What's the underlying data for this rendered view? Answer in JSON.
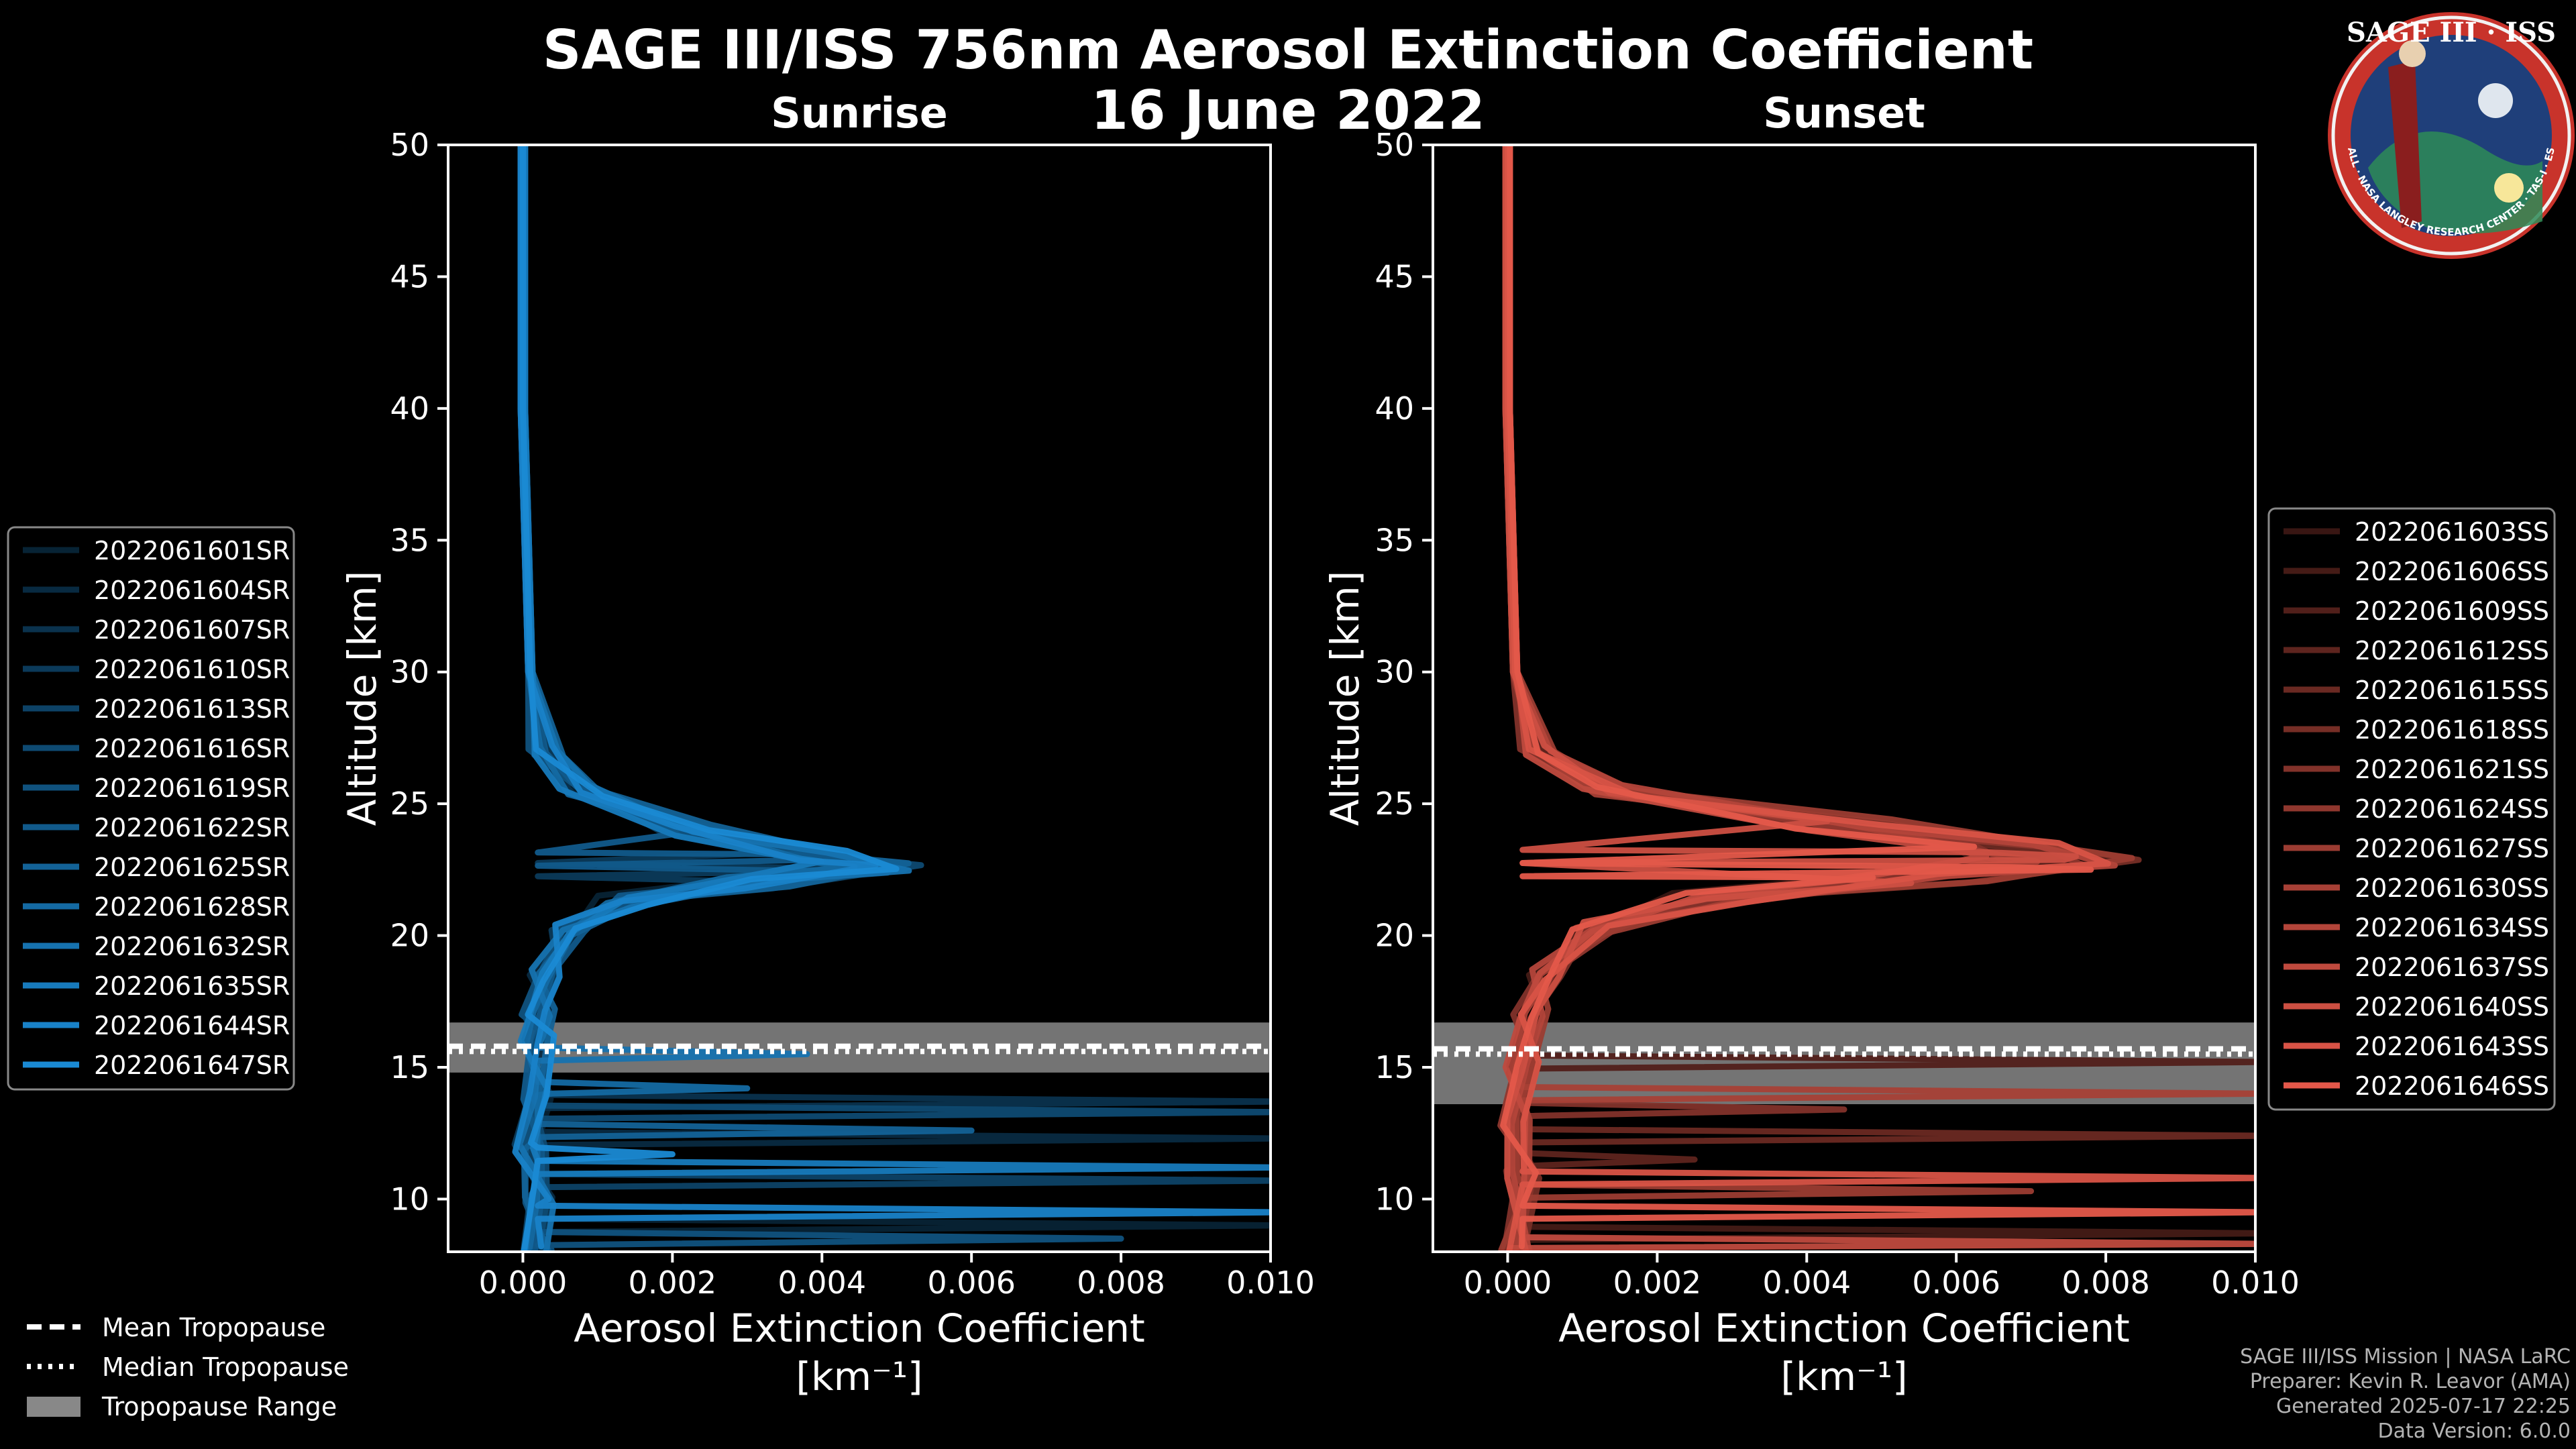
{
  "title": {
    "line1": "SAGE III/ISS 756nm Aerosol Extinction Coefficient",
    "line2": "16 June 2022"
  },
  "logo": {
    "text": "SAGE III · ISS",
    "ring_text": "BALL · NASA LANGLEY RESEARCH CENTER · TAS-I · ESA",
    "name": "sage-iii-iss-mission-patch"
  },
  "colors": {
    "background": "#000000",
    "sunrise": "#1a8ad4",
    "sunset": "#e4584a",
    "tropopause_band": "#888888",
    "axis": "#ffffff"
  },
  "legend_tropopause": {
    "mean": "Mean Tropopause",
    "median": "Median Tropopause",
    "range": "Tropopause Range"
  },
  "footer": {
    "line1": "SAGE III/ISS Mission | NASA LaRC",
    "line2": "Preparer: Kevin R. Leavor (AMA)",
    "line3": "Generated 2025-07-17 22:25",
    "line4": "Data Version: 6.0.0"
  },
  "chart_data": [
    {
      "type": "line",
      "panel": "sunrise",
      "title": "Sunrise",
      "xlabel": "Aerosol Extinction Coefficient",
      "xunit": "[km⁻¹]",
      "ylabel": "Altitude [km]",
      "xlim": [
        -0.001,
        0.01
      ],
      "ylim": [
        8,
        50
      ],
      "xticks": [
        "0.000",
        "0.002",
        "0.004",
        "0.006",
        "0.008",
        "0.010"
      ],
      "xtick_values": [
        0,
        0.002,
        0.004,
        0.006,
        0.008,
        0.01
      ],
      "yticks": [
        10,
        15,
        20,
        25,
        30,
        35,
        40,
        45,
        50
      ],
      "tropopause": {
        "mean": 15.8,
        "median": 15.6,
        "range": [
          14.8,
          16.7
        ]
      },
      "legend": [
        "2022061601SR",
        "2022061604SR",
        "2022061607SR",
        "2022061610SR",
        "2022061613SR",
        "2022061616SR",
        "2022061619SR",
        "2022061622SR",
        "2022061625SR",
        "2022061628SR",
        "2022061632SR",
        "2022061635SR",
        "2022061644SR",
        "2022061647SR"
      ],
      "profile_peak": {
        "altitude": 22.6,
        "value": 0.0047
      },
      "typical_profile": [
        [
          0.0,
          50
        ],
        [
          0.0,
          40
        ],
        [
          0.0001,
          30
        ],
        [
          0.0003,
          27
        ],
        [
          0.0008,
          25.5
        ],
        [
          0.0022,
          24
        ],
        [
          0.004,
          23
        ],
        [
          0.0047,
          22.6
        ],
        [
          0.003,
          22
        ],
        [
          0.0014,
          21.3
        ],
        [
          0.0006,
          20.2
        ],
        [
          0.0003,
          18.5
        ],
        [
          0.0002,
          17
        ],
        [
          0.0002,
          16
        ],
        [
          0.0002,
          14
        ],
        [
          0.0001,
          12
        ],
        [
          0.0002,
          10
        ],
        [
          0.0002,
          8
        ]
      ],
      "extra_peaks": [
        {
          "series": 3,
          "alt": 22.5,
          "v": 0.0051
        },
        {
          "series": 7,
          "alt": 22.9,
          "v": 0.0044
        },
        {
          "series": 10,
          "alt": 15.5,
          "v": 0.0038
        },
        {
          "series": 2,
          "alt": 13.7,
          "v": 0.0102
        },
        {
          "series": 5,
          "alt": 13.3,
          "v": 0.0102
        },
        {
          "series": 8,
          "alt": 12.6,
          "v": 0.006
        },
        {
          "series": 1,
          "alt": 12.3,
          "v": 0.0102
        },
        {
          "series": 11,
          "alt": 11.2,
          "v": 0.0102
        },
        {
          "series": 4,
          "alt": 10.7,
          "v": 0.0102
        },
        {
          "series": 12,
          "alt": 9.5,
          "v": 0.0102
        },
        {
          "series": 0,
          "alt": 9.0,
          "v": 0.0102
        },
        {
          "series": 6,
          "alt": 8.5,
          "v": 0.008
        },
        {
          "series": 9,
          "alt": 14.2,
          "v": 0.003
        },
        {
          "series": 13,
          "alt": 11.7,
          "v": 0.002
        }
      ]
    },
    {
      "type": "line",
      "panel": "sunset",
      "title": "Sunset",
      "xlabel": "Aerosol Extinction Coefficient",
      "xunit": "[km⁻¹]",
      "ylabel": "Altitude [km]",
      "xlim": [
        -0.001,
        0.01
      ],
      "ylim": [
        8,
        50
      ],
      "xticks": [
        "0.000",
        "0.002",
        "0.004",
        "0.006",
        "0.008",
        "0.010"
      ],
      "xtick_values": [
        0,
        0.002,
        0.004,
        0.006,
        0.008,
        0.01
      ],
      "yticks": [
        10,
        15,
        20,
        25,
        30,
        35,
        40,
        45,
        50
      ],
      "tropopause": {
        "mean": 15.7,
        "median": 15.5,
        "range": [
          13.6,
          16.7
        ]
      },
      "legend": [
        "2022061603SS",
        "2022061606SS",
        "2022061609SS",
        "2022061612SS",
        "2022061615SS",
        "2022061618SS",
        "2022061621SS",
        "2022061624SS",
        "2022061627SS",
        "2022061630SS",
        "2022061634SS",
        "2022061637SS",
        "2022061640SS",
        "2022061643SS",
        "2022061646SS"
      ],
      "profile_peak": {
        "altitude": 22.8,
        "value": 0.0075
      },
      "typical_profile": [
        [
          0.0,
          50
        ],
        [
          0.0,
          40
        ],
        [
          0.0001,
          30
        ],
        [
          0.0004,
          27
        ],
        [
          0.0014,
          25.5
        ],
        [
          0.0045,
          24.2
        ],
        [
          0.0068,
          23.3
        ],
        [
          0.0075,
          22.8
        ],
        [
          0.0055,
          22.2
        ],
        [
          0.0028,
          21.4
        ],
        [
          0.0012,
          20.3
        ],
        [
          0.0005,
          18.5
        ],
        [
          0.0003,
          17
        ],
        [
          0.0002,
          15
        ],
        [
          0.0001,
          13
        ],
        [
          0.0002,
          11
        ],
        [
          0.0001,
          8
        ]
      ],
      "extra_peaks": [
        {
          "series": 14,
          "alt": 22.5,
          "v": 0.0078
        },
        {
          "series": 12,
          "alt": 23.0,
          "v": 0.0076
        },
        {
          "series": 2,
          "alt": 15.2,
          "v": 0.0102
        },
        {
          "series": 9,
          "alt": 14.0,
          "v": 0.0102
        },
        {
          "series": 6,
          "alt": 13.4,
          "v": 0.0045
        },
        {
          "series": 4,
          "alt": 12.4,
          "v": 0.0102
        },
        {
          "series": 13,
          "alt": 10.8,
          "v": 0.0102
        },
        {
          "series": 8,
          "alt": 10.3,
          "v": 0.007
        },
        {
          "series": 14,
          "alt": 9.5,
          "v": 0.0102
        },
        {
          "series": 1,
          "alt": 8.7,
          "v": 0.0102
        },
        {
          "series": 11,
          "alt": 8.3,
          "v": 0.0102
        },
        {
          "series": 3,
          "alt": 11.5,
          "v": 0.0025
        }
      ]
    }
  ]
}
